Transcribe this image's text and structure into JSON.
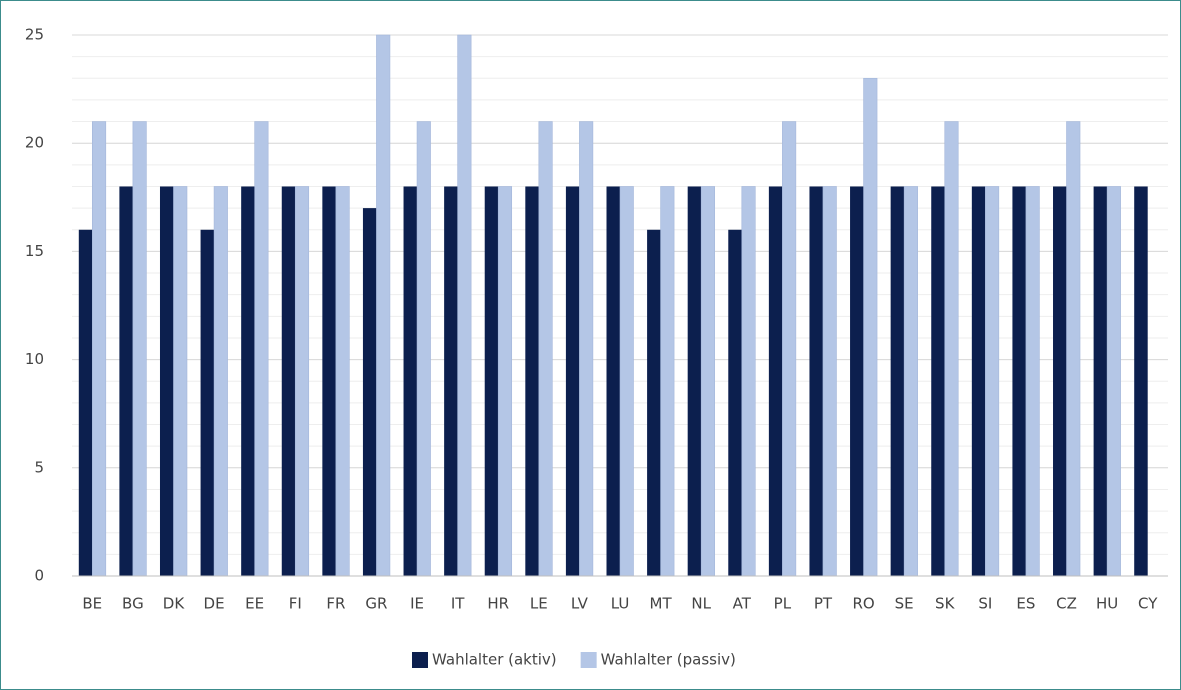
{
  "chart_data": {
    "type": "bar",
    "categories": [
      "BE",
      "BG",
      "DK",
      "DE",
      "EE",
      "FI",
      "FR",
      "GR",
      "IE",
      "IT",
      "HR",
      "LE",
      "LV",
      "LU",
      "MT",
      "NL",
      "AT",
      "PL",
      "PT",
      "RO",
      "SE",
      "SK",
      "SI",
      "ES",
      "CZ",
      "HU",
      "CY"
    ],
    "series": [
      {
        "name": "Wahlalter (aktiv)",
        "color": "#0c1f4e",
        "values": [
          16,
          18,
          18,
          16,
          18,
          18,
          18,
          17,
          18,
          18,
          18,
          18,
          18,
          18,
          16,
          18,
          16,
          18,
          18,
          18,
          18,
          18,
          18,
          18,
          18,
          18,
          18
        ]
      },
      {
        "name": "Wahlalter (passiv)",
        "color": "#b4c6e6",
        "values": [
          21,
          21,
          18,
          18,
          21,
          18,
          18,
          25,
          21,
          25,
          18,
          21,
          21,
          18,
          18,
          18,
          18,
          21,
          18,
          23,
          18,
          21,
          18,
          18,
          21,
          18,
          null
        ]
      }
    ],
    "ylim": [
      0,
      25
    ],
    "yticks": [
      0,
      5,
      10,
      15,
      20,
      25
    ],
    "grid": true,
    "minor_grid": true,
    "legend": "bottom"
  }
}
